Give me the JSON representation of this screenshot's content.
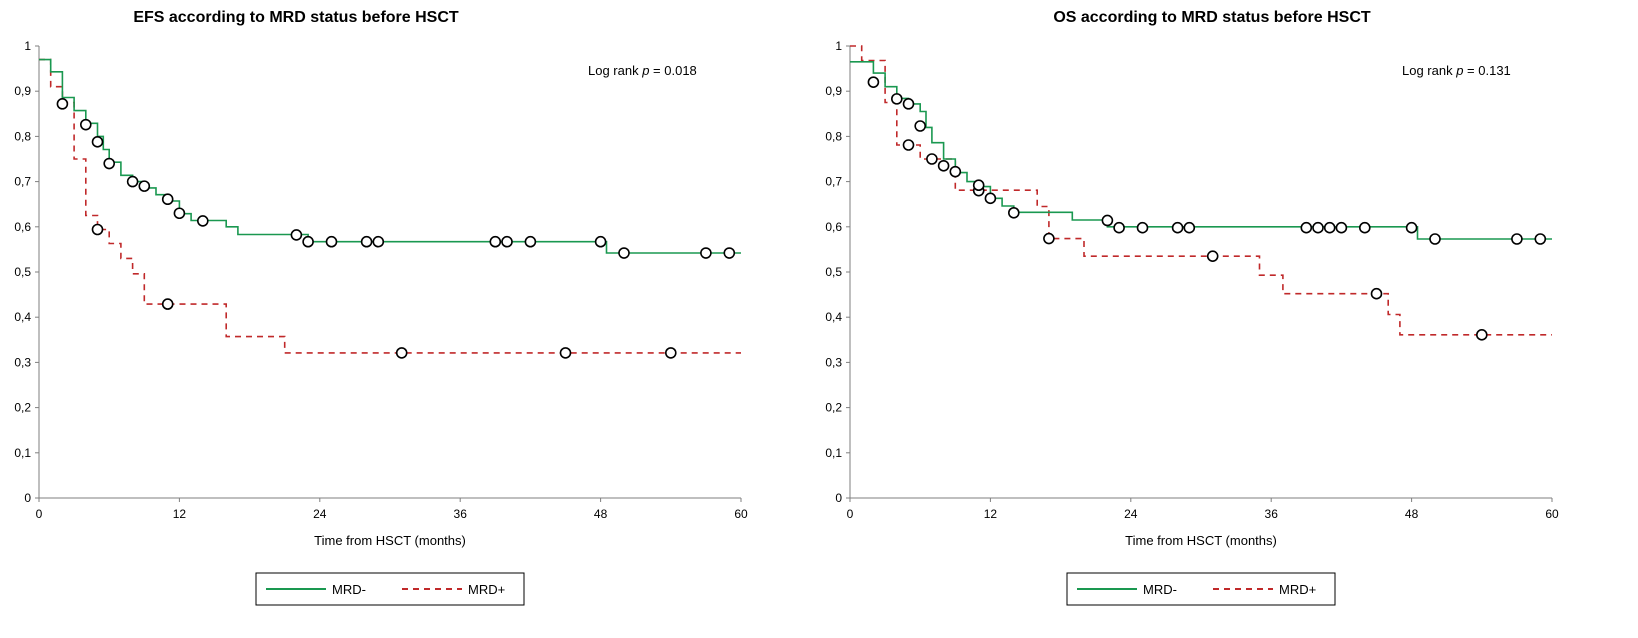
{
  "chart_data": [
    {
      "type": "line",
      "subtype": "kaplan-meier",
      "title": "EFS according to MRD status before HSCT",
      "xlabel": "Time from HSCT (months)",
      "ylabel": "",
      "xlim": [
        0,
        60
      ],
      "ylim": [
        0,
        1
      ],
      "x_ticks": [
        0,
        12,
        24,
        36,
        48,
        60
      ],
      "x_tick_labels": [
        "0",
        "12",
        "24",
        "36",
        "48",
        "60"
      ],
      "y_ticks": [
        0,
        0.1,
        0.2,
        0.3,
        0.4,
        0.5,
        0.6,
        0.7,
        0.8,
        0.9,
        1
      ],
      "y_tick_labels": [
        "0",
        "0,1",
        "0,2",
        "0,3",
        "0,4",
        "0,5",
        "0,6",
        "0,7",
        "0,8",
        "0,9",
        "1"
      ],
      "annotation": {
        "prefix": "Log rank ",
        "p": "p",
        "suffix": " = 0.018"
      },
      "legend": [
        "MRD-",
        "MRD+"
      ],
      "series": [
        {
          "name": "MRD-",
          "color": "#1a9850",
          "dash": "solid",
          "steps": [
            [
              0,
              0.97
            ],
            [
              1,
              0.943
            ],
            [
              2,
              0.886
            ],
            [
              3,
              0.857
            ],
            [
              4,
              0.829
            ],
            [
              5,
              0.8
            ],
            [
              5.5,
              0.771
            ],
            [
              6,
              0.743
            ],
            [
              7,
              0.714
            ],
            [
              8,
              0.7
            ],
            [
              9,
              0.686
            ],
            [
              10,
              0.671
            ],
            [
              11,
              0.657
            ],
            [
              12,
              0.629
            ],
            [
              13,
              0.614
            ],
            [
              16,
              0.6
            ],
            [
              17,
              0.583
            ],
            [
              23,
              0.567
            ],
            [
              48.5,
              0.542
            ],
            [
              60,
              0.542
            ]
          ],
          "censors": [
            [
              2,
              0.872
            ],
            [
              4,
              0.826
            ],
            [
              5,
              0.788
            ],
            [
              6,
              0.74
            ],
            [
              8,
              0.7
            ],
            [
              9,
              0.69
            ],
            [
              11,
              0.661
            ],
            [
              12,
              0.63
            ],
            [
              14,
              0.613
            ],
            [
              22,
              0.582
            ],
            [
              23,
              0.567
            ],
            [
              25,
              0.567
            ],
            [
              28,
              0.567
            ],
            [
              29,
              0.567
            ],
            [
              39,
              0.567
            ],
            [
              40,
              0.567
            ],
            [
              42,
              0.567
            ],
            [
              48,
              0.567
            ],
            [
              50,
              0.542
            ],
            [
              57,
              0.542
            ],
            [
              59,
              0.542
            ]
          ]
        },
        {
          "name": "MRD+",
          "color": "#c0292a",
          "dash": "dashed",
          "steps": [
            [
              0,
              0.97
            ],
            [
              1,
              0.91
            ],
            [
              2,
              0.875
            ],
            [
              3,
              0.75
            ],
            [
              4,
              0.625
            ],
            [
              5,
              0.594
            ],
            [
              6,
              0.563
            ],
            [
              7,
              0.53
            ],
            [
              8,
              0.496
            ],
            [
              9,
              0.429
            ],
            [
              16,
              0.357
            ],
            [
              21,
              0.321
            ],
            [
              60,
              0.321
            ]
          ],
          "censors": [
            [
              5,
              0.594
            ],
            [
              11,
              0.429
            ],
            [
              31,
              0.321
            ],
            [
              45,
              0.321
            ],
            [
              54,
              0.321
            ]
          ]
        }
      ]
    },
    {
      "type": "line",
      "subtype": "kaplan-meier",
      "title": "OS according to MRD status before HSCT",
      "xlabel": "Time from HSCT (months)",
      "ylabel": "",
      "xlim": [
        0,
        60
      ],
      "ylim": [
        0,
        1
      ],
      "x_ticks": [
        0,
        12,
        24,
        36,
        48,
        60
      ],
      "x_tick_labels": [
        "0",
        "12",
        "24",
        "36",
        "48",
        "60"
      ],
      "y_ticks": [
        0,
        0.1,
        0.2,
        0.3,
        0.4,
        0.5,
        0.6,
        0.7,
        0.8,
        0.9,
        1
      ],
      "y_tick_labels": [
        "0",
        "0,1",
        "0,2",
        "0,3",
        "0,4",
        "0,5",
        "0,6",
        "0,7",
        "0,8",
        "0,9",
        "1"
      ],
      "annotation": {
        "prefix": "Log rank ",
        "p": "p",
        "suffix": " = 0.131"
      },
      "legend": [
        "MRD-",
        "MRD+"
      ],
      "series": [
        {
          "name": "MRD-",
          "color": "#1a9850",
          "dash": "solid",
          "steps": [
            [
              0,
              0.965
            ],
            [
              2,
              0.94
            ],
            [
              3,
              0.91
            ],
            [
              4,
              0.884
            ],
            [
              5,
              0.872
            ],
            [
              6,
              0.855
            ],
            [
              6.5,
              0.82
            ],
            [
              7,
              0.786
            ],
            [
              8,
              0.75
            ],
            [
              9,
              0.72
            ],
            [
              10,
              0.7
            ],
            [
              11,
              0.689
            ],
            [
              12,
              0.663
            ],
            [
              13,
              0.646
            ],
            [
              14,
              0.632
            ],
            [
              19,
              0.615
            ],
            [
              22,
              0.6
            ],
            [
              48.5,
              0.573
            ],
            [
              60,
              0.573
            ]
          ],
          "censors": [
            [
              2,
              0.92
            ],
            [
              4,
              0.883
            ],
            [
              5,
              0.872
            ],
            [
              6,
              0.823
            ],
            [
              11,
              0.692
            ],
            [
              12,
              0.663
            ],
            [
              14,
              0.631
            ],
            [
              22,
              0.614
            ],
            [
              23,
              0.598
            ],
            [
              25,
              0.598
            ],
            [
              28,
              0.598
            ],
            [
              29,
              0.598
            ],
            [
              39,
              0.598
            ],
            [
              40,
              0.598
            ],
            [
              41,
              0.598
            ],
            [
              42,
              0.598
            ],
            [
              44,
              0.598
            ],
            [
              48,
              0.598
            ],
            [
              50,
              0.573
            ],
            [
              57,
              0.573
            ],
            [
              59,
              0.573
            ]
          ]
        },
        {
          "name": "MRD+",
          "color": "#c0292a",
          "dash": "dashed",
          "steps": [
            [
              0,
              1
            ],
            [
              1,
              0.968
            ],
            [
              3,
              0.875
            ],
            [
              4,
              0.781
            ],
            [
              6,
              0.75
            ],
            [
              9,
              0.681
            ],
            [
              10,
              0.681
            ],
            [
              16,
              0.645
            ],
            [
              17,
              0.574
            ],
            [
              20,
              0.535
            ],
            [
              35,
              0.493
            ],
            [
              37,
              0.452
            ],
            [
              46,
              0.406
            ],
            [
              47,
              0.361
            ],
            [
              60,
              0.361
            ]
          ],
          "censors": [
            [
              5,
              0.781
            ],
            [
              7,
              0.75
            ],
            [
              8,
              0.735
            ],
            [
              9,
              0.722
            ],
            [
              11,
              0.68
            ],
            [
              17,
              0.574
            ],
            [
              31,
              0.535
            ],
            [
              45,
              0.452
            ],
            [
              54,
              0.361
            ]
          ]
        }
      ]
    }
  ]
}
